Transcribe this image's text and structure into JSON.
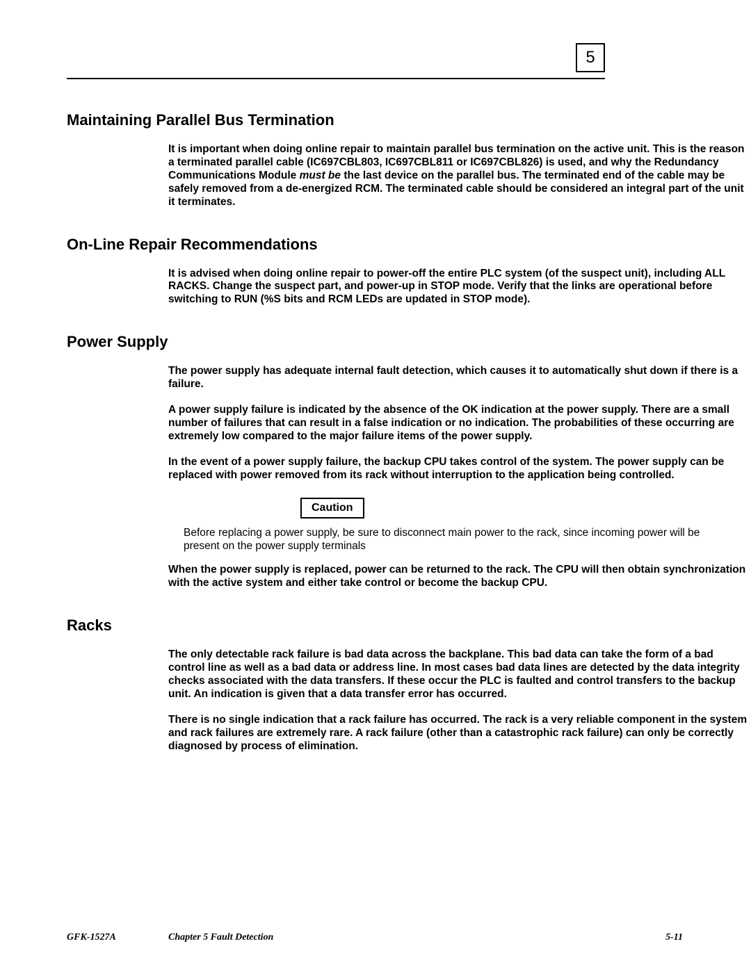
{
  "chapter_number": "5",
  "sections": {
    "s1_title": "Maintaining Parallel Bus Termination",
    "s1_p1_a": "It is important when doing online repair to maintain parallel bus termination on the active unit. This is the reason a terminated parallel cable (IC697CBL803, IC697CBL811 or IC697CBL826) is used, and why the Redundancy Communications Module ",
    "s1_p1_b": "must be",
    "s1_p1_c": " the last device on the parallel bus.  The terminated end of the cable may be safely removed from a de-energized RCM.  The terminated cable should be considered an integral part of the unit it terminates.",
    "s2_title": "On-Line Repair Recommendations",
    "s2_p1": "It is advised when doing online repair to power-off the entire PLC system (of the suspect unit), including ALL RACKS.  Change the suspect part, and power-up in STOP mode.  Verify that the links are operational before switching to RUN (%S bits and RCM LEDs are updated in STOP mode).",
    "s3_title": "Power Supply",
    "s3_p1": "The power supply has adequate internal fault detection, which causes it to automatically shut down if there is a failure.",
    "s3_p2": "A power supply failure is indicated by the absence of the OK indication at the power supply.  There are a small number of failures that can result in a false indication or no indication. The probabilities of these occurring are extremely low compared to the major failure items of the power supply.",
    "s3_p3": "In the event of a power supply failure, the backup CPU takes control of the system. The power supply can be replaced with power removed from its rack without interruption to the application being controlled.",
    "s3_caution_label": "Caution",
    "s3_caution_text": "Before replacing a power supply, be sure to disconnect main power to the rack, since incoming power will be present on the power supply terminals",
    "s3_p4": "When the power supply is replaced, power can be returned to the rack. The CPU will then obtain synchronization with the active system and either take control or become the backup CPU.",
    "s4_title": "Racks",
    "s4_p1": "The only detectable rack failure is bad data across the backplane. This bad data can take the form of a bad control line as well as a bad data or address line. In most cases bad data lines are detected by the data integrity checks associated with the data transfers. If these occur the PLC is faulted and control transfers to the backup unit. An indication is given that a data transfer error has occurred.",
    "s4_p2": "There is no single indication that a rack failure has occurred. The rack is a very reliable component in the system and rack failures are extremely rare. A rack failure (other than a catastrophic rack failure) can only be correctly diagnosed by process of elimination."
  },
  "footer": {
    "doc_id": "GFK-1527A",
    "chapter_title": "Chapter 5  Fault Detection",
    "page_number": "5-11"
  }
}
